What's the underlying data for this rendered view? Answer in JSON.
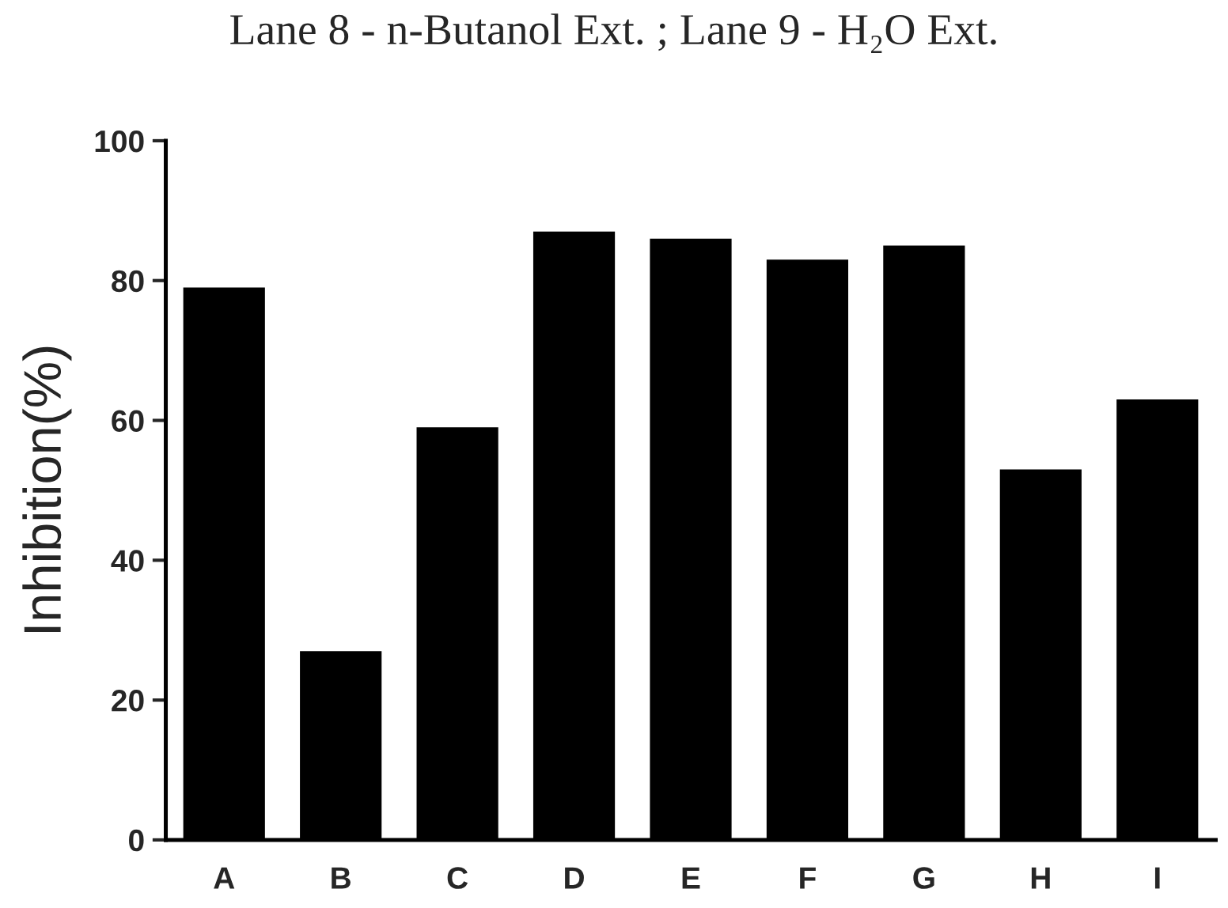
{
  "chart_data": {
    "type": "bar",
    "ylabel": "Inhibition(%)",
    "categories": [
      "A",
      "B",
      "C",
      "D",
      "E",
      "F",
      "G",
      "H",
      "I"
    ],
    "values": [
      79,
      27,
      59,
      87,
      86,
      83,
      85,
      53,
      63
    ],
    "color": "#000000",
    "ylim": [
      0,
      100
    ],
    "yticks": [
      0,
      20,
      40,
      60,
      80,
      100
    ],
    "grid": false,
    "annotations": [
      "Lane 8 - n-Butanol Ext. ; Lane 9 - H₂O Ext."
    ]
  }
}
